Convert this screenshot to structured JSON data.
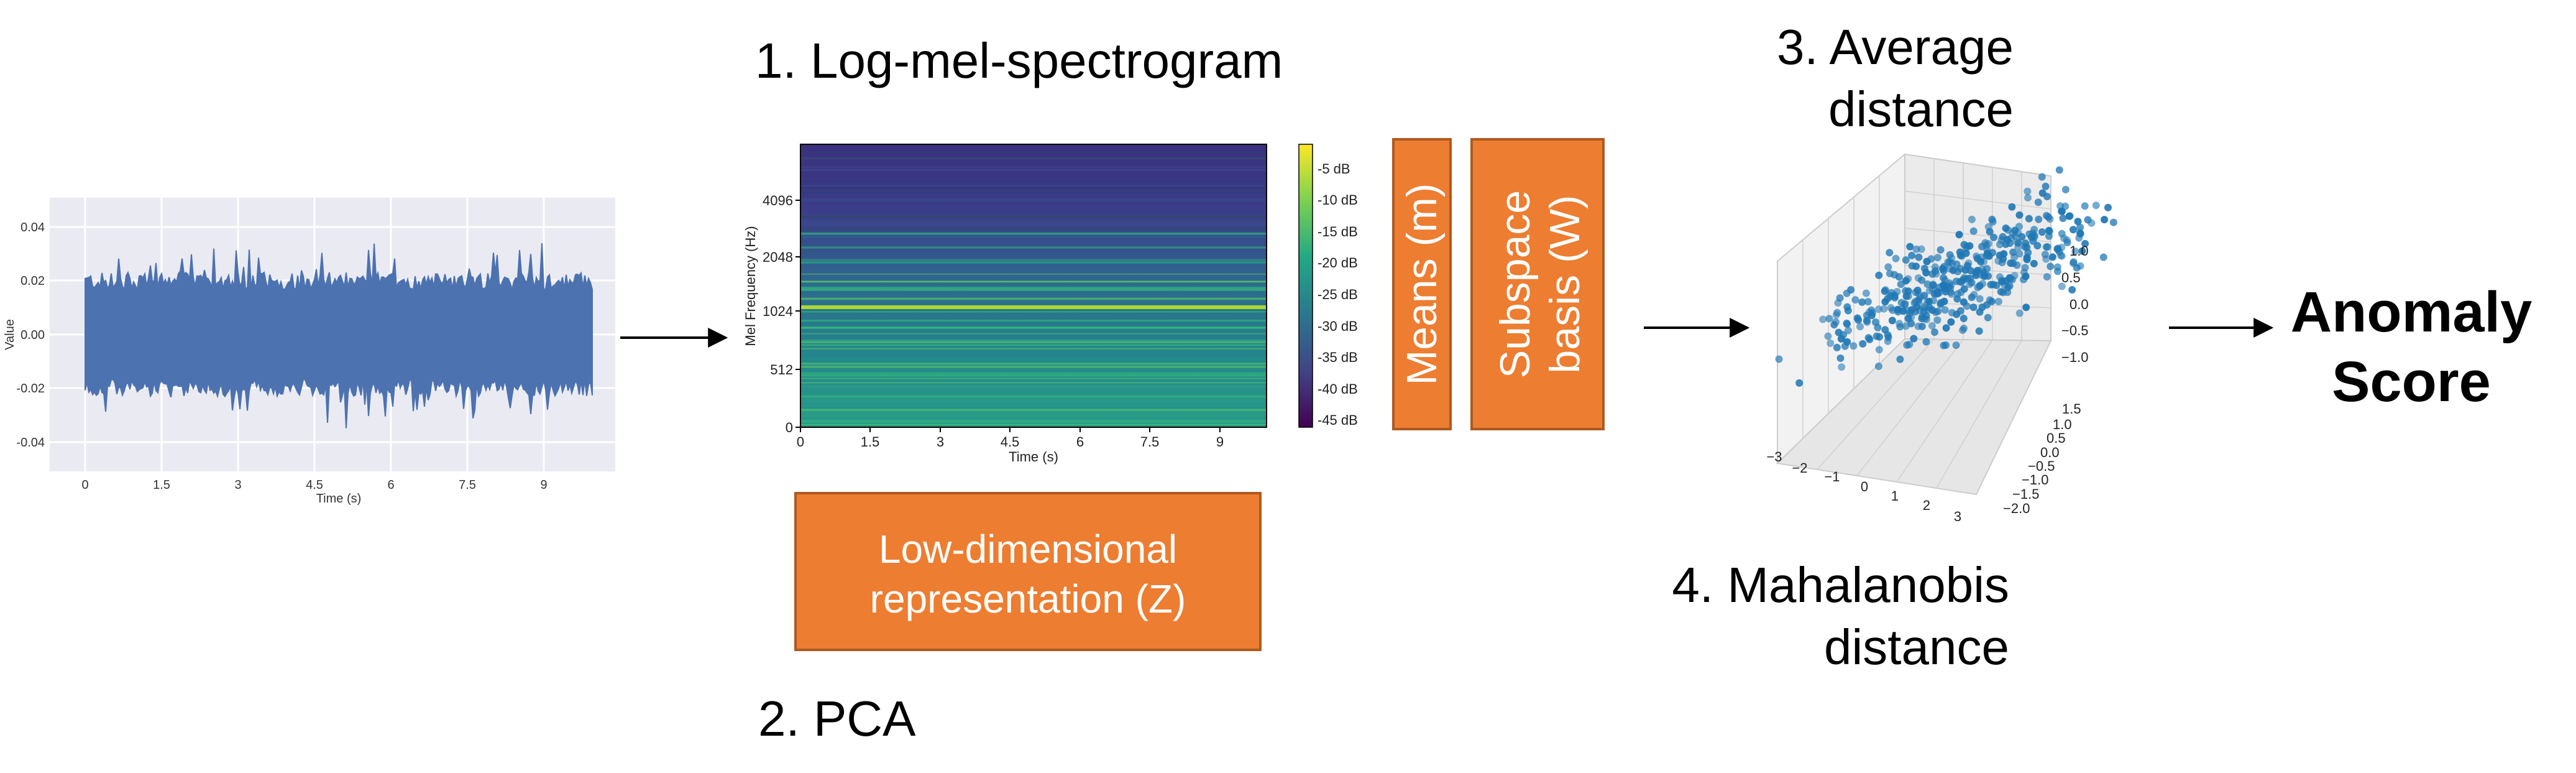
{
  "labels": {
    "step1": "1. Log-mel-spectrogram",
    "step2": "2. PCA",
    "step3_line1": "3. Average",
    "step3_line2": "distance",
    "step4_line1": "4. Mahalanobis",
    "step4_line2": "distance",
    "result_line1": "Anomaly",
    "result_line2": "Score"
  },
  "boxes": {
    "means": "Means (m)",
    "basis_line1": "Subspace",
    "basis_line2": "basis (W)",
    "lowdim_line1": "Low-dimensional",
    "lowdim_line2": "representation (Z)"
  },
  "waveform": {
    "ylabel": "Value",
    "xlabel": "Time (s)",
    "xticks": [
      "0",
      "1.5",
      "3",
      "4.5",
      "6",
      "7.5",
      "9"
    ],
    "yticks": [
      "0.04",
      "0.02",
      "0.00",
      "-0.02",
      "-0.04"
    ]
  },
  "spectrogram": {
    "ylabel": "Mel Frequency (Hz)",
    "xlabel": "Time (s)",
    "xticks": [
      "0",
      "1.5",
      "3",
      "4.5",
      "6",
      "7.5",
      "9"
    ],
    "yticks": [
      "4096",
      "2048",
      "1024",
      "512",
      "0"
    ],
    "colorbar": [
      "-5 dB",
      "-10 dB",
      "-15 dB",
      "-20 dB",
      "-25 dB",
      "-30 dB",
      "-35 dB",
      "-40 dB",
      "-45 dB"
    ]
  },
  "scatter3d": {
    "xticks": [
      "−3",
      "−2",
      "−1",
      "0",
      "1",
      "2",
      "3"
    ],
    "yticks": [
      "1.5",
      "1.0",
      "0.5",
      "0.0",
      "−0.5",
      "−1.0",
      "−1.5",
      "−2.0"
    ],
    "zticks": [
      "1.0",
      "0.5",
      "0.0",
      "−0.5",
      "−1.0"
    ]
  },
  "colors": {
    "box_fill": "#ED7D31",
    "box_stroke": "#AE5A21",
    "waveform": "#4C72B0",
    "scatter": "#1f77b4",
    "plot_bg": "#EAEAF2"
  }
}
